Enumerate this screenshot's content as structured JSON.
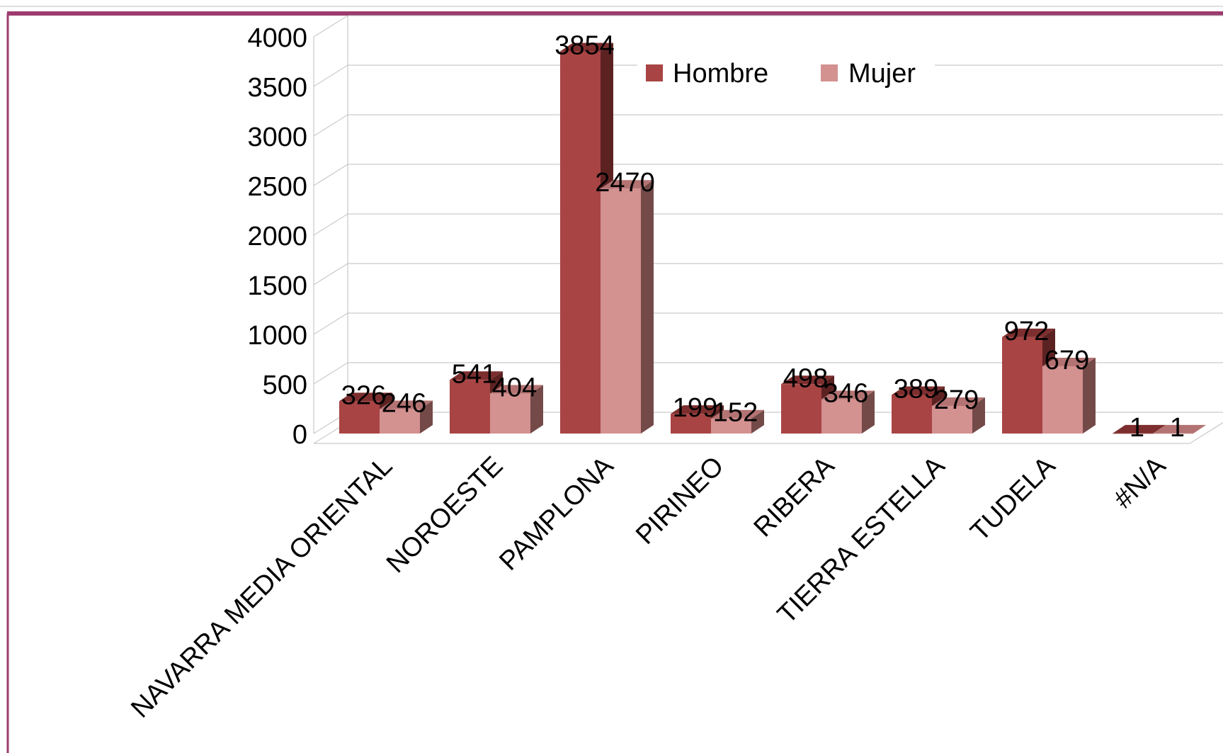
{
  "chart_data": {
    "type": "bar",
    "categories": [
      "NAVARRA MEDIA ORIENTAL",
      "NOROESTE",
      "PAMPLONA",
      "PIRINEO",
      "RIBERA",
      "TIERRA ESTELLA",
      "TUDELA",
      "#N/A"
    ],
    "series": [
      {
        "name": "Hombre",
        "values": [
          326,
          541,
          3854,
          199,
          498,
          389,
          972,
          1
        ]
      },
      {
        "name": "Mujer",
        "values": [
          246,
          404,
          2470,
          152,
          346,
          279,
          679,
          1
        ]
      }
    ],
    "yticks": [
      "0",
      "500",
      "1000",
      "1500",
      "2000",
      "2500",
      "3000",
      "3500",
      "4000"
    ],
    "ylim": [
      0,
      4000
    ],
    "title": "",
    "xlabel": "",
    "ylabel": "",
    "grid": true,
    "legend_position": "top-right",
    "colors": {
      "Hombre": "#A84444",
      "Mujer": "#D39190",
      "frame": "#9C3B6E"
    }
  }
}
